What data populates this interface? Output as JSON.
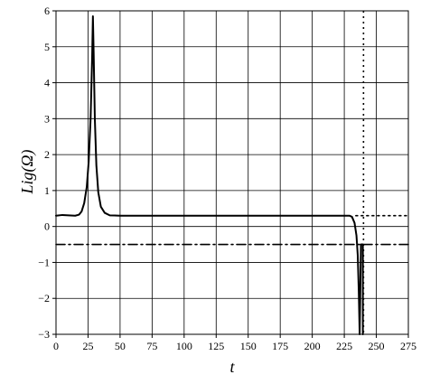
{
  "chart_data": {
    "type": "line",
    "title": "",
    "xlabel": "t",
    "ylabel": "Lig(Ω)",
    "xlim": [
      0,
      275
    ],
    "ylim": [
      -3,
      6
    ],
    "grid": true,
    "x_ticks": [
      "0",
      "25",
      "50",
      "75",
      "100",
      "125",
      "150",
      "175",
      "200",
      "225",
      "250",
      "275"
    ],
    "y_ticks": [
      "6",
      "5",
      "4",
      "3",
      "2",
      "1",
      "0",
      "−1",
      "−2",
      "−3"
    ],
    "series": [
      {
        "style": "solid",
        "color": "#000000",
        "points": [
          [
            0,
            0.3
          ],
          [
            5,
            0.32
          ],
          [
            10,
            0.31
          ],
          [
            15,
            0.3
          ],
          [
            18,
            0.33
          ],
          [
            20,
            0.42
          ],
          [
            22,
            0.65
          ],
          [
            24,
            1.1
          ],
          [
            25.5,
            1.8
          ],
          [
            27,
            3.0
          ],
          [
            28.2,
            4.7
          ],
          [
            28.8,
            5.85
          ],
          [
            29.4,
            4.8
          ],
          [
            30.3,
            3.0
          ],
          [
            31.5,
            1.7
          ],
          [
            33,
            0.95
          ],
          [
            35,
            0.55
          ],
          [
            38,
            0.38
          ],
          [
            42,
            0.31
          ],
          [
            50,
            0.3
          ],
          [
            100,
            0.3
          ],
          [
            150,
            0.3
          ],
          [
            200,
            0.3
          ],
          [
            225,
            0.3
          ],
          [
            229,
            0.3
          ],
          [
            231,
            0.27
          ],
          [
            233,
            0.1
          ],
          [
            234.5,
            -0.25
          ],
          [
            235.5,
            -0.8
          ],
          [
            236.3,
            -1.8
          ],
          [
            237,
            -3.0
          ],
          [
            237.5,
            -1.8
          ],
          [
            238,
            -0.5
          ],
          [
            239.5,
            -0.5
          ],
          [
            239.5,
            -3.0
          ]
        ]
      },
      {
        "style": "dotted",
        "color": "#000000",
        "points": [
          [
            234,
            0.3
          ],
          [
            275,
            0.3
          ]
        ]
      },
      {
        "style": "dashdot",
        "color": "#000000",
        "points": [
          [
            0,
            -0.5
          ],
          [
            275,
            -0.5
          ]
        ]
      }
    ],
    "vertical_lines": [
      {
        "x": 240,
        "style": "dotted",
        "color": "#000000"
      }
    ]
  }
}
